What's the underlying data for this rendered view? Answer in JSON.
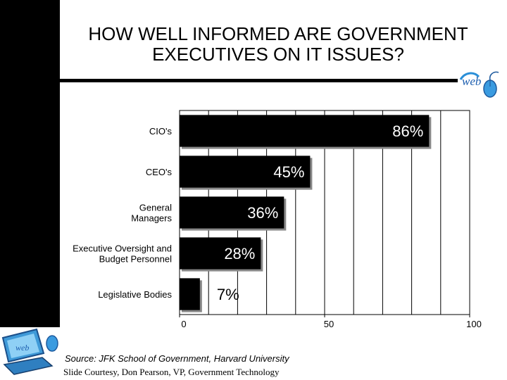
{
  "title": {
    "line1": "HOW WELL INFORMED ARE GOVERNMENT",
    "line2": "EXECUTIVES ON IT ISSUES?"
  },
  "logos": {
    "top": "web-logo",
    "bottom": "computer-mouse-logo"
  },
  "chart_data": {
    "type": "bar",
    "orientation": "horizontal",
    "categories": [
      [
        "CIO's"
      ],
      [
        "CEO's"
      ],
      [
        "General",
        "Managers"
      ],
      [
        "Executive Oversight and",
        "Budget Personnel"
      ],
      [
        "Legislative Bodies"
      ]
    ],
    "values": [
      86,
      45,
      36,
      28,
      7
    ],
    "data_labels": [
      "86%",
      "45%",
      "36%",
      "28%",
      "7%"
    ],
    "xlim": [
      0,
      100
    ],
    "xticks": [
      0,
      50,
      100
    ],
    "grid": true,
    "bar_color": "#000000",
    "shadow_color": "#888888"
  },
  "footer": {
    "source": "Source: JFK School of Government, Harvard University",
    "credit": "Slide Courtesy, Don Pearson, VP, Government Technology"
  }
}
